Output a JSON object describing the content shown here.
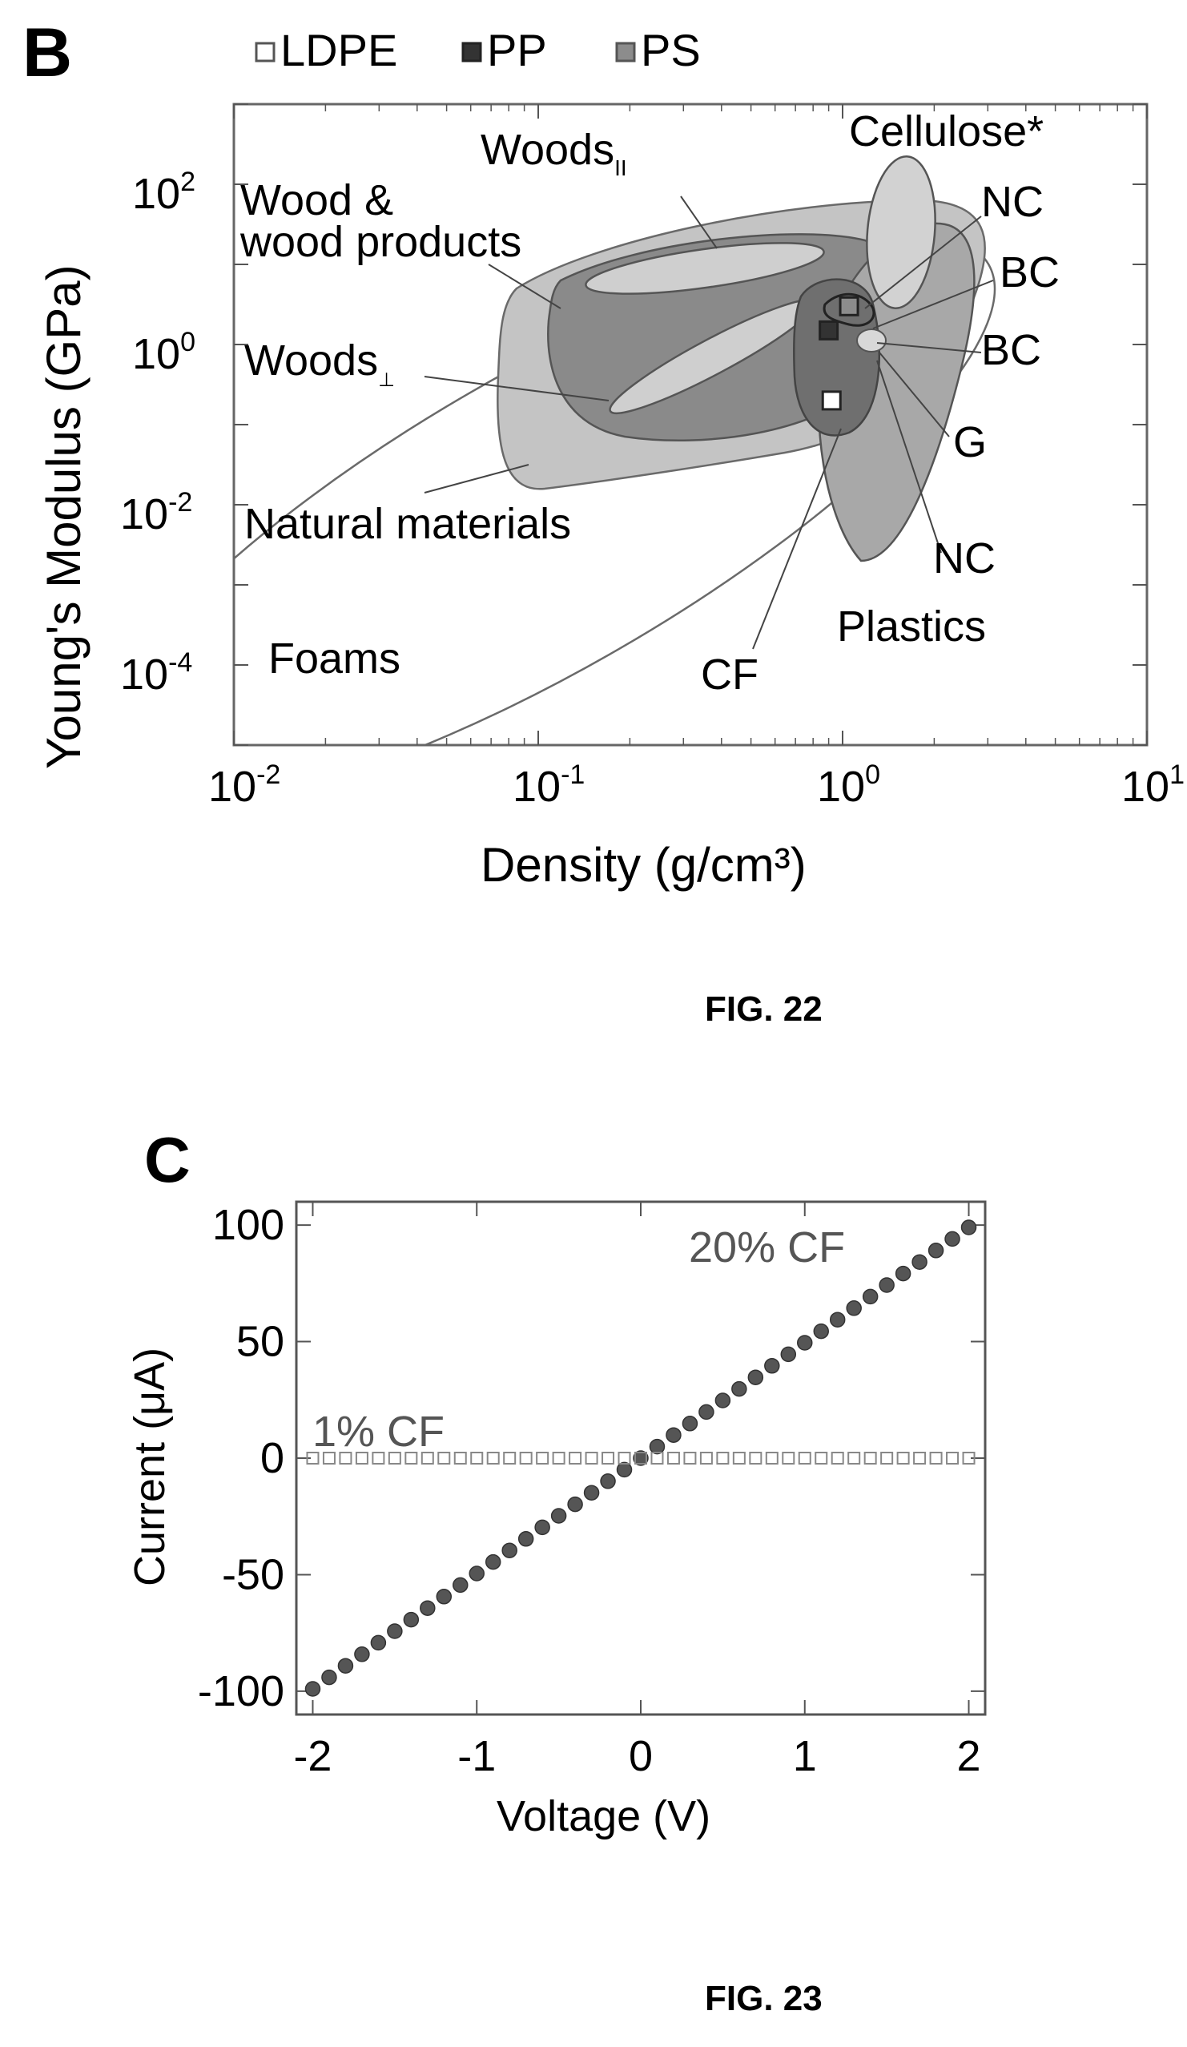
{
  "figures": {
    "fig22": {
      "panel_letter": "B",
      "caption": "FIG. 22",
      "legend": [
        {
          "label": "LDPE",
          "color": "#ffffff"
        },
        {
          "label": "PP",
          "color": "#333333"
        },
        {
          "label": "PS",
          "color": "#8c8c8c"
        }
      ],
      "region_labels": {
        "woods_ii_base": "Woods",
        "woods_ii_sub": "II",
        "wood_products_line1": "Wood &",
        "wood_products_line2": "wood products",
        "woods_perp_base": "Woods",
        "woods_perp_sub": "⊥",
        "natural_materials": "Natural materials",
        "foams": "Foams",
        "cellulose": "Cellulose*",
        "nc_top": "NC",
        "bc_top": "BC",
        "bc_mid": "BC",
        "g": "G",
        "nc_bottom": "NC",
        "plastics": "Plastics",
        "cf": "CF"
      }
    },
    "fig23": {
      "panel_letter": "C",
      "caption": "FIG. 23"
    }
  },
  "chart_data": [
    {
      "type": "scatter",
      "title": "",
      "xlabel": "Density (g/cm³)",
      "ylabel": "Young's Modulus (GPa)",
      "xscale": "log",
      "yscale": "log",
      "xlim": [
        0.01,
        10
      ],
      "ylim": [
        1e-05,
        1000
      ],
      "x_ticks": [
        {
          "base": "10",
          "exp": "-2"
        },
        {
          "base": "10",
          "exp": "-1"
        },
        {
          "base": "10",
          "exp": "0"
        },
        {
          "base": "10",
          "exp": "1"
        }
      ],
      "y_ticks": [
        {
          "base": "10",
          "exp": "-4"
        },
        {
          "base": "10",
          "exp": "-2"
        },
        {
          "base": "10",
          "exp": "0"
        },
        {
          "base": "10",
          "exp": "2"
        }
      ],
      "legend_position": "top",
      "series": [
        {
          "name": "LDPE",
          "x": [
            0.92
          ],
          "y": [
            0.2
          ]
        },
        {
          "name": "PP",
          "x": [
            0.9
          ],
          "y": [
            1.5
          ]
        },
        {
          "name": "PS",
          "x": [
            1.05
          ],
          "y": [
            3.0
          ]
        }
      ],
      "grid": false
    },
    {
      "type": "scatter",
      "title": "",
      "xlabel": "Voltage (V)",
      "ylabel": "Current (μA)",
      "xlim": [
        -2.1,
        2.1
      ],
      "ylim": [
        -110,
        110
      ],
      "x_ticks": [
        "-2",
        "-1",
        "0",
        "1",
        "2"
      ],
      "y_ticks": [
        "-100",
        "-50",
        "0",
        "50",
        "100"
      ],
      "grid": false,
      "series": [
        {
          "name": "20% CF",
          "slope_uA_per_V": 49.5,
          "v_start": -2.0,
          "v_end": 2.0,
          "n_points": 41,
          "marker": "filled-circle",
          "color": "#555555"
        },
        {
          "name": "1% CF",
          "slope_uA_per_V": 0.0,
          "v_start": -2.0,
          "v_end": 2.0,
          "n_points": 41,
          "marker": "open-square",
          "color": "#888888"
        }
      ]
    }
  ]
}
